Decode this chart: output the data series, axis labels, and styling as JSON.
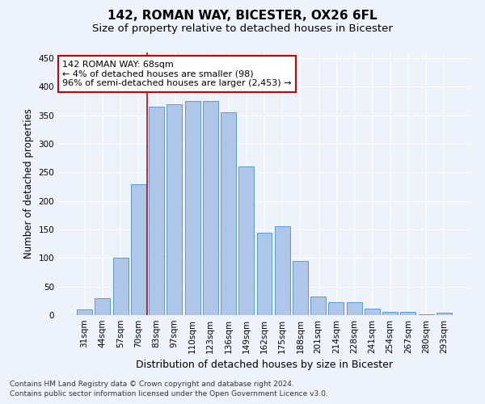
{
  "title": "142, ROMAN WAY, BICESTER, OX26 6FL",
  "subtitle": "Size of property relative to detached houses in Bicester",
  "xlabel": "Distribution of detached houses by size in Bicester",
  "ylabel": "Number of detached properties",
  "footnote1": "Contains HM Land Registry data © Crown copyright and database right 2024.",
  "footnote2": "Contains public sector information licensed under the Open Government Licence v3.0.",
  "categories": [
    "31sqm",
    "44sqm",
    "57sqm",
    "70sqm",
    "83sqm",
    "97sqm",
    "110sqm",
    "123sqm",
    "136sqm",
    "149sqm",
    "162sqm",
    "175sqm",
    "188sqm",
    "201sqm",
    "214sqm",
    "228sqm",
    "241sqm",
    "254sqm",
    "267sqm",
    "280sqm",
    "293sqm"
  ],
  "values": [
    10,
    30,
    100,
    230,
    365,
    370,
    375,
    375,
    355,
    260,
    145,
    155,
    95,
    33,
    22,
    22,
    12,
    5,
    5,
    2,
    4
  ],
  "bar_color": "#aec6e8",
  "bar_edge_color": "#5b9bd5",
  "vline_x": 3.5,
  "vline_color": "#cc0000",
  "annotation_text": "142 ROMAN WAY: 68sqm\n← 4% of detached houses are smaller (98)\n96% of semi-detached houses are larger (2,453) →",
  "annotation_box_color": "#ffffff",
  "annotation_box_edge": "#cc0000",
  "ylim": [
    0,
    460
  ],
  "yticks": [
    0,
    50,
    100,
    150,
    200,
    250,
    300,
    350,
    400,
    450
  ],
  "background_color": "#eef2fb",
  "grid_color": "#ffffff",
  "title_fontsize": 11,
  "subtitle_fontsize": 9.5,
  "xlabel_fontsize": 9,
  "ylabel_fontsize": 8.5,
  "tick_fontsize": 7.5,
  "annot_fontsize": 8,
  "footnote_fontsize": 6.5
}
